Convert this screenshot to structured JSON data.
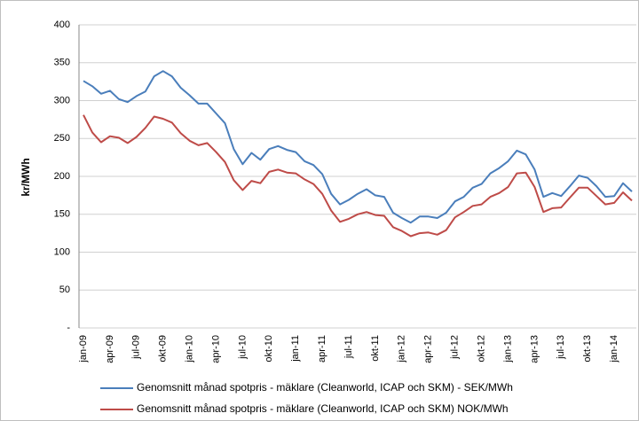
{
  "chart_data": {
    "type": "line",
    "y_label": "kr/MWh",
    "categories": [
      "jan-09",
      null,
      null,
      "apr-09",
      null,
      null,
      "jul-09",
      null,
      null,
      "okt-09",
      null,
      null,
      "jan-10",
      null,
      null,
      "apr-10",
      null,
      null,
      "jul-10",
      null,
      null,
      "okt-10",
      null,
      null,
      "jan-11",
      null,
      null,
      "apr-11",
      null,
      null,
      "jul-11",
      null,
      null,
      "okt-11",
      null,
      null,
      "jan-12",
      null,
      null,
      "apr-12",
      null,
      null,
      "jul-12",
      null,
      null,
      "okt-12",
      null,
      null,
      "jan-13",
      null,
      null,
      "apr-13",
      null,
      null,
      "jul-13",
      null,
      null,
      "okt-13",
      null,
      null,
      "jan-14",
      null,
      null
    ],
    "series": [
      {
        "name": "Genomsnitt månad spotpris - mäklare (Cleanworld, ICAP och SKM) - SEK/MWh",
        "color": "#4a7ebb",
        "values": [
          326,
          319,
          309,
          313,
          302,
          298,
          306,
          312,
          332,
          339,
          332,
          317,
          307,
          296,
          296,
          283,
          270,
          236,
          216,
          231,
          222,
          236,
          240,
          235,
          232,
          220,
          215,
          203,
          177,
          163,
          169,
          177,
          183,
          175,
          173,
          152,
          145,
          139,
          147,
          147,
          145,
          152,
          167,
          173,
          185,
          190,
          204,
          211,
          220,
          234,
          229,
          209,
          173,
          178,
          174,
          187,
          201,
          198,
          187,
          173,
          174,
          191,
          180
        ]
      },
      {
        "name": "Genomsnitt månad spotpris - mäklare (Cleanworld, ICAP och SKM) NOK/MWh",
        "color": "#be4b48",
        "values": [
          281,
          258,
          245,
          253,
          251,
          244,
          252,
          264,
          279,
          276,
          271,
          257,
          247,
          241,
          244,
          232,
          219,
          195,
          182,
          194,
          191,
          206,
          209,
          205,
          204,
          196,
          190,
          177,
          155,
          140,
          144,
          150,
          153,
          149,
          148,
          133,
          128,
          121,
          125,
          126,
          123,
          129,
          146,
          153,
          161,
          163,
          173,
          178,
          186,
          204,
          205,
          186,
          153,
          158,
          159,
          172,
          185,
          185,
          174,
          163,
          165,
          179,
          168
        ]
      }
    ],
    "ylim": [
      0,
      400
    ],
    "yticks": [
      {
        "value": 0,
        "label": "-"
      },
      50,
      100,
      150,
      200,
      250,
      300,
      350,
      400
    ],
    "grid": true,
    "legend": "bottom"
  }
}
